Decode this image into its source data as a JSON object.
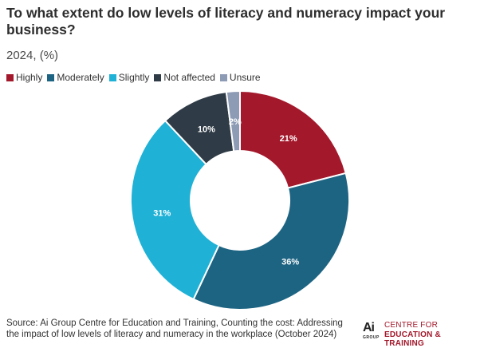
{
  "header": {
    "title": "To what extent do low levels of literacy and numeracy impact your business?",
    "subtitle": "2024, (%)"
  },
  "chart_data": {
    "type": "pie",
    "title": "To what extent do low levels of literacy and numeracy impact your business?",
    "subtitle": "2024, (%)",
    "legend_position": "top-left",
    "donut": true,
    "categories": [
      "Highly",
      "Moderately",
      "Slightly",
      "Not affected",
      "Unsure"
    ],
    "values": [
      21,
      36,
      31,
      10,
      2
    ],
    "labels": [
      "21%",
      "36%",
      "31%",
      "10%",
      "2%"
    ],
    "colors": [
      "#a3182b",
      "#1d6483",
      "#1fb1d6",
      "#2f3b46",
      "#8e9bb5"
    ]
  },
  "footer": {
    "source": "Source: Ai Group Centre for Education and Training, Counting the cost: Addressing the impact of low levels of literacy and numeracy in the workplace (October 2024)",
    "logo_mark": "Ai",
    "logo_mark_sub": "GROUP",
    "logo_line1": "CENTRE FOR",
    "logo_line2": "EDUCATION & TRAINING"
  }
}
